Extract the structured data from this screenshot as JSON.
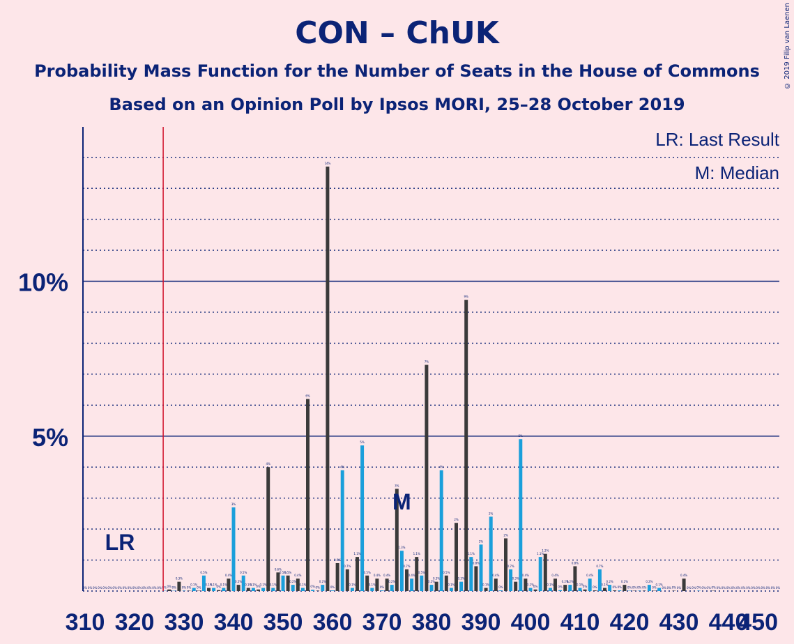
{
  "title": "CON – ChUK",
  "subtitle1": "Probability Mass Function for the Number of Seats in the House of Commons",
  "subtitle2": "Based on an Opinion Poll by Ipsos MORI, 25–28 October 2019",
  "copyright": "© 2019 Filip van Laenen",
  "legend": {
    "lr": "LR: Last Result",
    "m": "M: Median"
  },
  "markers": {
    "lr_label": "LR",
    "m_label": "M",
    "last_result_seat": 326,
    "median_seat": 373
  },
  "colors": {
    "background": "#fde6e9",
    "axis": "#0b2376",
    "bar_light": "#1a9fdb",
    "bar_dark": "#3a3a3a",
    "last_result_line": "#d0102a"
  },
  "chart_data": {
    "type": "bar",
    "xlim": [
      310,
      450
    ],
    "ylim": [
      0,
      15
    ],
    "x_ticks": [
      310,
      320,
      330,
      340,
      350,
      360,
      370,
      380,
      390,
      400,
      410,
      420,
      430,
      440,
      450
    ],
    "x_tick_labels": [
      "310",
      "320",
      "330",
      "340",
      "350",
      "360",
      "370",
      "380",
      "390",
      "400",
      "410",
      "420",
      "430",
      "440",
      "450"
    ],
    "y_labels": [
      {
        "value": 5,
        "label": "5%"
      },
      {
        "value": 10,
        "label": "10%"
      }
    ],
    "grid": "dotted every 1%, solid at 5% and 10%",
    "seats": [
      310,
      311,
      312,
      313,
      314,
      315,
      316,
      317,
      318,
      319,
      320,
      321,
      322,
      323,
      324,
      325,
      326,
      327,
      328,
      329,
      330,
      331,
      332,
      333,
      334,
      335,
      336,
      337,
      338,
      339,
      340,
      341,
      342,
      343,
      344,
      345,
      346,
      347,
      348,
      349,
      350,
      351,
      352,
      353,
      354,
      355,
      356,
      357,
      358,
      359,
      360,
      361,
      362,
      363,
      364,
      365,
      366,
      367,
      368,
      369,
      370,
      371,
      372,
      373,
      374,
      375,
      376,
      377,
      378,
      379,
      380,
      381,
      382,
      383,
      384,
      385,
      386,
      387,
      388,
      389,
      390,
      391,
      392,
      393,
      394,
      395,
      396,
      397,
      398,
      399,
      400,
      401,
      402,
      403,
      404,
      405,
      406,
      407,
      408,
      409,
      410,
      411,
      412,
      413,
      414,
      415,
      416,
      417,
      418,
      419,
      420,
      421,
      422,
      423,
      424,
      425,
      426,
      427,
      428,
      429,
      430,
      431,
      432,
      433,
      434,
      435,
      436,
      437,
      438,
      439,
      440,
      441,
      442,
      443,
      444,
      445,
      446,
      447,
      448,
      449,
      450
    ],
    "values": [
      0,
      0,
      0,
      0,
      0,
      0,
      0,
      0,
      0,
      0,
      0,
      0,
      0,
      0,
      0,
      0,
      0.01,
      0.05,
      0.01,
      0.3,
      0.01,
      0.01,
      0.1,
      0.01,
      0.5,
      0.1,
      0.1,
      0.03,
      0.1,
      0.4,
      2.7,
      0.2,
      0.5,
      0.1,
      0.1,
      0.05,
      0.1,
      4.0,
      0.1,
      0.6,
      0.5,
      0.5,
      0.2,
      0.4,
      0.1,
      6.2,
      0.04,
      0.01,
      0.2,
      13.7,
      0.02,
      0.9,
      3.9,
      0.7,
      0.1,
      1.1,
      4.7,
      0.5,
      0.1,
      0.4,
      0.02,
      0.4,
      0.2,
      3.3,
      1.3,
      0.7,
      0.4,
      1.1,
      0.5,
      7.3,
      0.2,
      0.3,
      3.9,
      0.5,
      0.1,
      2.2,
      0.3,
      9.4,
      1.1,
      0.8,
      1.5,
      0.1,
      2.4,
      0.4,
      0.02,
      1.7,
      0.7,
      0.3,
      4.9,
      0.4,
      0.1,
      0.05,
      1.1,
      1.2,
      0.1,
      0.4,
      0.03,
      0.2,
      0.2,
      0.8,
      0.1,
      0.05,
      0.4,
      0.02,
      0.7,
      0.1,
      0.2,
      0.02,
      0.02,
      0.2,
      0.01,
      0.01,
      0.01,
      0.01,
      0.2,
      0.01,
      0.1,
      0,
      0,
      0.01,
      0,
      0.4,
      0,
      0,
      0.01,
      0,
      0,
      0.01,
      0,
      0,
      0,
      0,
      0,
      0,
      0,
      0,
      0,
      0,
      0,
      0,
      0,
      0,
      0
    ],
    "value_labels": [
      "0%",
      "0%",
      "0%",
      "0%",
      "0%",
      "0%",
      "0%",
      "0%",
      "0%",
      "0%",
      "0%",
      "0%",
      "0%",
      "0%",
      "0%",
      "0%",
      "0%",
      "0%",
      "0%",
      "0.3%",
      "0%",
      "0%",
      "0.1%",
      "0%",
      "0.5%",
      "0.1%",
      "0.1%",
      "0%",
      "0.1%",
      "0.4%",
      "3%",
      "0.2%",
      "0.5%",
      "0.1%",
      "0.1%",
      "0%",
      "0.1%",
      "4%",
      "0.1%",
      "0.6%",
      "0.5%",
      "0.5%",
      "0.2%",
      "0.4%",
      "0.1%",
      "6%",
      "0%",
      "0%",
      "0.2%",
      "14%",
      "0%",
      "0.9%",
      "4%",
      "0.7%",
      "0.1%",
      "1.1%",
      "5%",
      "0.5%",
      "0.1%",
      "0.4%",
      "0%",
      "0.4%",
      "0.2%",
      "3%",
      "1.3%",
      "0.7%",
      "0.4%",
      "1.1%",
      "0.5%",
      "7%",
      "0.2%",
      "0.3%",
      "4%",
      "0.5%",
      "0.1%",
      "2%",
      "0.3%",
      "9%",
      "1.1%",
      "0.8%",
      "2%",
      "0.1%",
      "2%",
      "0.4%",
      "0%",
      "2%",
      "0.7%",
      "0.3%",
      "5%",
      "0.4%",
      "0.1%",
      "0%",
      "1.1%",
      "1.2%",
      "0.1%",
      "0.4%",
      "0%",
      "0.2%",
      "0.2%",
      "0.8%",
      "0.1%",
      "0%",
      "0.4%",
      "0%",
      "0.7%",
      "0.1%",
      "0.2%",
      "0%",
      "0%",
      "0.2%",
      "0%",
      "0%",
      "0%",
      "0%",
      "0.2%",
      "0%",
      "0.1%",
      "0%",
      "0%",
      "0%",
      "0%",
      "0.4%",
      "0%",
      "0%",
      "0%",
      "0%",
      "0%",
      "0%",
      "0%",
      "0%",
      "0%",
      "0%",
      "0%",
      "0%",
      "0%",
      "0%",
      "0%",
      "0%",
      "0%",
      "0%",
      "0%",
      "0%",
      "0%"
    ]
  }
}
